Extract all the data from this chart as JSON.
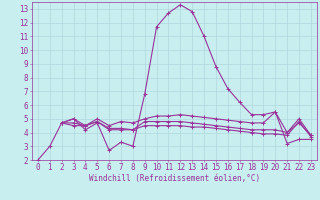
{
  "xlabel": "Windchill (Refroidissement éolien,°C)",
  "bg_color": "#c8eef0",
  "grid_color": "#b0d8dc",
  "line_color": "#993399",
  "xlim": [
    -0.5,
    23.5
  ],
  "ylim": [
    2,
    13.5
  ],
  "xticks": [
    0,
    1,
    2,
    3,
    4,
    5,
    6,
    7,
    8,
    9,
    10,
    11,
    12,
    13,
    14,
    15,
    16,
    17,
    18,
    19,
    20,
    21,
    22,
    23
  ],
  "yticks": [
    2,
    3,
    4,
    5,
    6,
    7,
    8,
    9,
    10,
    11,
    12,
    13
  ],
  "line1_x": [
    0,
    1,
    2,
    3,
    4,
    5,
    6,
    7,
    8,
    9,
    10,
    11,
    12,
    13,
    14,
    15,
    16,
    17,
    18,
    19,
    20,
    21,
    22,
    23
  ],
  "line1_y": [
    2.0,
    3.0,
    4.7,
    5.0,
    4.2,
    4.7,
    2.7,
    3.3,
    3.0,
    6.8,
    11.7,
    12.7,
    13.3,
    12.8,
    11.0,
    8.8,
    7.2,
    6.2,
    5.3,
    5.3,
    5.5,
    3.2,
    3.5,
    3.5
  ],
  "line2_x": [
    2,
    3,
    4,
    5,
    6,
    7,
    8,
    9,
    10,
    11,
    12,
    13,
    14,
    15,
    16,
    17,
    18,
    19,
    20,
    21,
    22,
    23
  ],
  "line2_y": [
    4.7,
    5.0,
    4.5,
    5.0,
    4.5,
    4.8,
    4.7,
    5.0,
    5.2,
    5.2,
    5.3,
    5.2,
    5.1,
    5.0,
    4.9,
    4.8,
    4.7,
    4.7,
    5.5,
    4.0,
    4.7,
    3.8
  ],
  "line3_x": [
    2,
    3,
    4,
    5,
    6,
    7,
    8,
    9,
    10,
    11,
    12,
    13,
    14,
    15,
    16,
    17,
    18,
    19,
    20,
    21,
    22,
    23
  ],
  "line3_y": [
    4.7,
    4.7,
    4.5,
    4.8,
    4.3,
    4.3,
    4.2,
    4.8,
    4.8,
    4.8,
    4.8,
    4.7,
    4.6,
    4.5,
    4.4,
    4.3,
    4.2,
    4.2,
    4.2,
    4.0,
    5.0,
    3.8
  ],
  "line4_x": [
    2,
    3,
    4,
    5,
    6,
    7,
    8,
    9,
    10,
    11,
    12,
    13,
    14,
    15,
    16,
    17,
    18,
    19,
    20,
    21,
    22,
    23
  ],
  "line4_y": [
    4.7,
    4.5,
    4.5,
    4.8,
    4.2,
    4.2,
    4.2,
    4.5,
    4.5,
    4.5,
    4.5,
    4.4,
    4.4,
    4.3,
    4.2,
    4.1,
    4.0,
    3.9,
    3.9,
    3.8,
    4.8,
    3.7
  ],
  "xlabel_fontsize": 5.5,
  "tick_fontsize": 5.5
}
